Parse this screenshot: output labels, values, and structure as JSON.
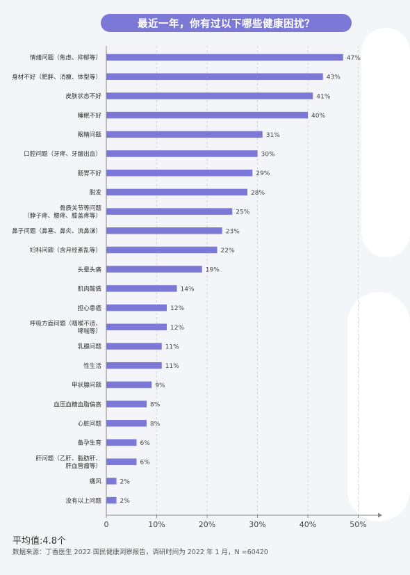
{
  "title": "最近一年，你有过以下哪些健康困扰？",
  "average_label": "平均值:4.8个",
  "source": "数据来源：丁香医生 2022 国民健康洞察报告，调研时间为 2022 年 1 月，N =60420",
  "chart_data": {
    "type": "bar",
    "orientation": "horizontal",
    "title": "最近一年，你有过以下哪些健康困扰？",
    "categories": [
      [
        "情绪问题（焦虑、抑郁等）"
      ],
      [
        "身材不好（肥胖、消瘦、体型等）"
      ],
      [
        "皮肤状态不好"
      ],
      [
        "睡眠不好"
      ],
      [
        "眼睛问题"
      ],
      [
        "口腔问题（牙疼、牙龈出血）"
      ],
      [
        "肠胃不好"
      ],
      [
        "脱发"
      ],
      [
        "骨质关节等问题",
        "（脖子疼、腰疼、膝盖疼等）"
      ],
      [
        "鼻子问题（鼻塞、鼻炎、流鼻涕）"
      ],
      [
        "妇科问题（含月经紊乱等）"
      ],
      [
        "头晕头痛"
      ],
      [
        "肌肉酸痛"
      ],
      [
        "担心患癌"
      ],
      [
        "呼吸方面问题（咽喉不适、",
        "哮喘等）"
      ],
      [
        "乳腺问题"
      ],
      [
        "性生活"
      ],
      [
        "甲状腺问题"
      ],
      [
        "血压血糖血脂偏高"
      ],
      [
        "心脏问题"
      ],
      [
        "备孕生育"
      ],
      [
        "肝问题（乙肝、脂肪肝、",
        "肝血管瘤等）"
      ],
      [
        "痛风"
      ],
      [
        "没有以上问题"
      ]
    ],
    "values": [
      47,
      43,
      41,
      40,
      31,
      30,
      29,
      28,
      25,
      23,
      22,
      19,
      14,
      12,
      12,
      11,
      11,
      9,
      8,
      8,
      6,
      6,
      2,
      2
    ],
    "value_suffix": "%",
    "x_ticks": [
      "0",
      "10%",
      "20%",
      "30%",
      "40%",
      "50%"
    ],
    "xlim": [
      0,
      50
    ],
    "grid": "vertical dashed",
    "bar_color": "#7c78d6",
    "legend": "none"
  }
}
